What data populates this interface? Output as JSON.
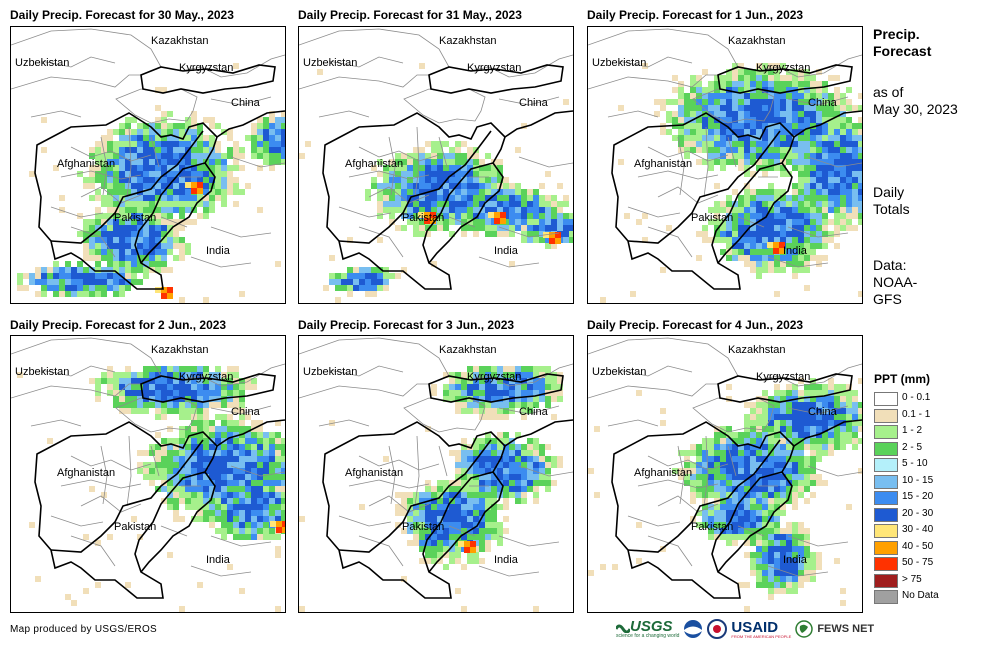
{
  "panels": [
    {
      "title": "Daily Precip. Forecast for 30 May., 2023",
      "seed": 11,
      "focus": [
        [
          150,
          140,
          90,
          60
        ],
        [
          120,
          210,
          60,
          40
        ],
        [
          270,
          110,
          40,
          30
        ],
        [
          70,
          250,
          70,
          20
        ]
      ],
      "hot": [
        [
          150,
          260
        ],
        [
          180,
          155
        ]
      ]
    },
    {
      "title": "Daily Precip. Forecast for 31 May., 2023",
      "seed": 23,
      "focus": [
        [
          140,
          160,
          80,
          50
        ],
        [
          200,
          180,
          70,
          30
        ],
        [
          250,
          200,
          40,
          20
        ],
        [
          60,
          250,
          40,
          15
        ]
      ],
      "hot": [
        [
          125,
          185
        ],
        [
          195,
          185
        ],
        [
          250,
          205
        ]
      ]
    },
    {
      "title": "Daily Precip. Forecast for 1 Jun., 2023",
      "seed": 37,
      "focus": [
        [
          170,
          90,
          110,
          60
        ],
        [
          180,
          200,
          70,
          50
        ],
        [
          250,
          140,
          60,
          60
        ]
      ],
      "hot": [
        [
          185,
          215
        ]
      ]
    },
    {
      "title": "Daily Precip. Forecast for 2 Jun., 2023",
      "seed": 51,
      "focus": [
        [
          210,
          130,
          90,
          60
        ],
        [
          240,
          170,
          50,
          40
        ],
        [
          160,
          50,
          90,
          30
        ]
      ],
      "hot": [
        [
          265,
          185
        ]
      ]
    },
    {
      "title": "Daily Precip. Forecast for 3 Jun., 2023",
      "seed": 67,
      "focus": [
        [
          150,
          180,
          60,
          50
        ],
        [
          200,
          130,
          60,
          40
        ],
        [
          200,
          50,
          70,
          30
        ]
      ],
      "hot": [
        [
          165,
          205
        ]
      ]
    },
    {
      "title": "Daily Precip. Forecast for 4 Jun., 2023",
      "seed": 79,
      "focus": [
        [
          160,
          130,
          80,
          50
        ],
        [
          150,
          180,
          50,
          30
        ],
        [
          220,
          80,
          70,
          40
        ],
        [
          190,
          220,
          40,
          40
        ]
      ],
      "hot": []
    }
  ],
  "labels": {
    "kazakhstan": "Kazakhstan",
    "uzbekistan": "Uzbekistan",
    "kyrgyzstan": "Kyrgyzstan",
    "china": "China",
    "afghanistan": "Afghanistan",
    "pakistan": "Pakistan",
    "india": "India"
  },
  "side": {
    "heading_line1": "Precip.",
    "heading_line2": "Forecast",
    "asof_line1": "as of",
    "asof_line2": "May 30, 2023",
    "daily_line1": "Daily",
    "daily_line2": "Totals",
    "data_line1": "Data:",
    "data_line2": "NOAA-",
    "data_line3": "GFS"
  },
  "legend": {
    "title": "PPT (mm)",
    "items": [
      {
        "label": "0 - 0.1",
        "color": "#ffffff"
      },
      {
        "label": "0.1 - 1",
        "color": "#f1dfb9"
      },
      {
        "label": "1 - 2",
        "color": "#a6f08c"
      },
      {
        "label": "2 - 5",
        "color": "#5ad25a"
      },
      {
        "label": "5 - 10",
        "color": "#b4f0fa"
      },
      {
        "label": "10 - 15",
        "color": "#78bef0"
      },
      {
        "label": "15 - 20",
        "color": "#3c8cf0"
      },
      {
        "label": "20 - 30",
        "color": "#1e5ad2"
      },
      {
        "label": "30 - 40",
        "color": "#ffe678"
      },
      {
        "label": "40 - 50",
        "color": "#ffa000"
      },
      {
        "label": "50 - 75",
        "color": "#ff3200"
      },
      {
        "label": "> 75",
        "color": "#a01e1e"
      },
      {
        "label": "No Data",
        "color": "#a0a0a0"
      }
    ]
  },
  "credit": "Map produced by USGS/EROS",
  "logos": {
    "usgs": "USGS",
    "usgs_tagline": "science for a changing world",
    "usaid": "USAID",
    "usaid_tagline": "FROM THE AMERICAN PEOPLE",
    "fewsnet": "FEWS NET"
  }
}
